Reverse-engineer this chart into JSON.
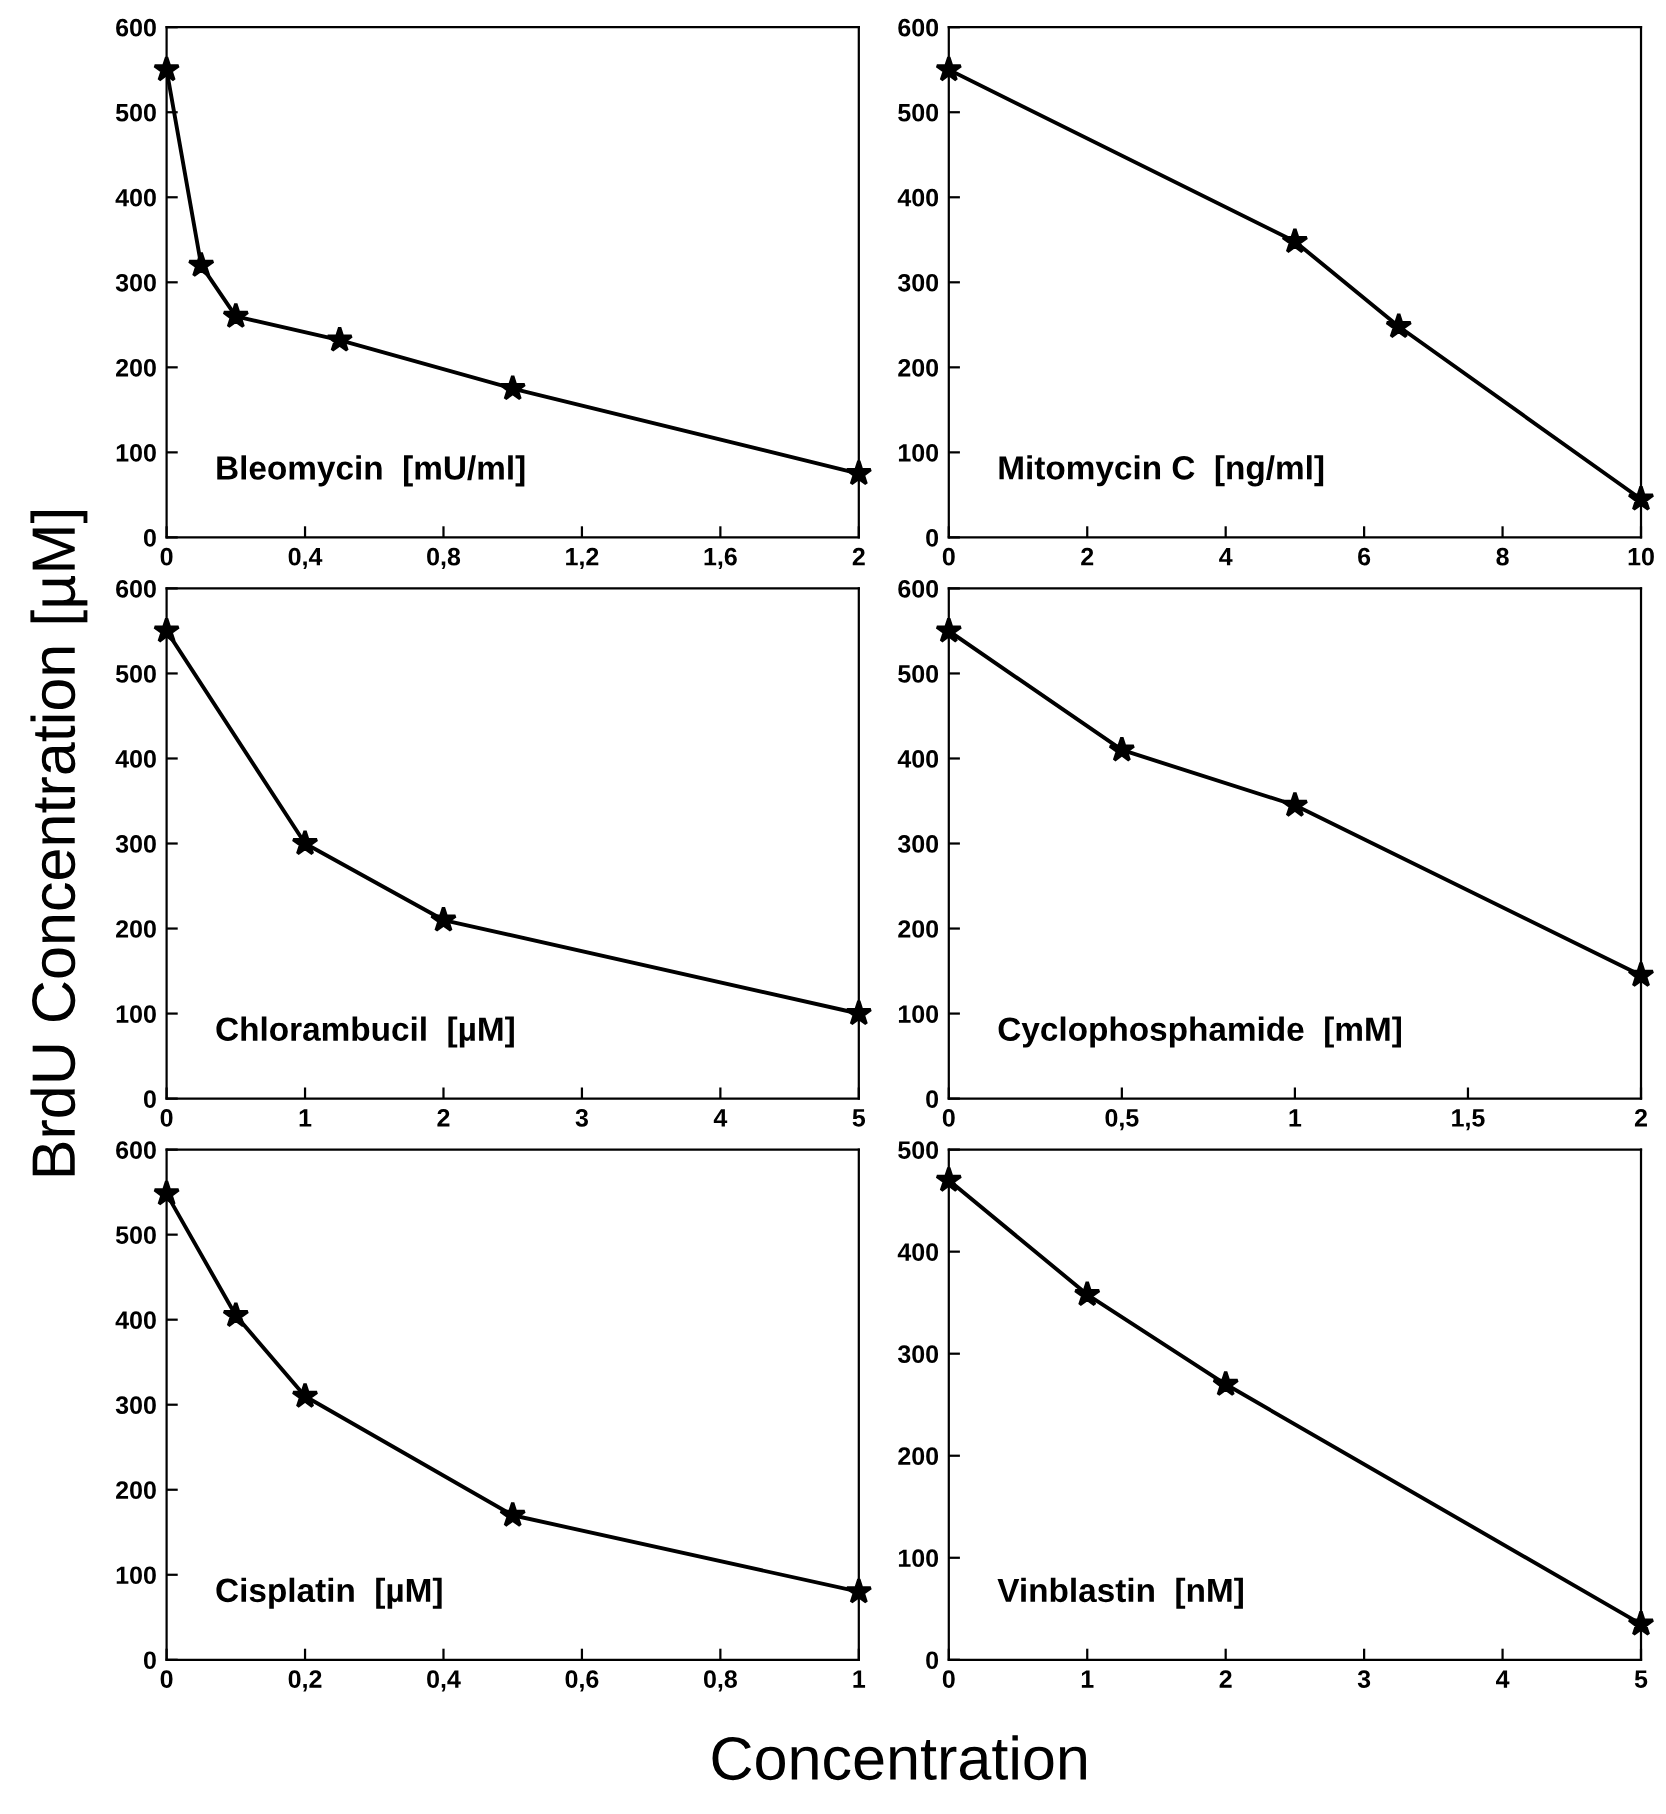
{
  "chart_data": [
    {
      "type": "line",
      "x": [
        0,
        0.1,
        0.2,
        0.5,
        1,
        2
      ],
      "values": [
        550,
        320,
        260,
        232,
        175,
        75
      ],
      "color": "#000000",
      "marker": "star",
      "line_style": "solid",
      "grid": false,
      "annotations": [
        "Bleomycin  [mU/ml]"
      ],
      "xlim": [
        0,
        2
      ],
      "xticks": [
        0,
        {
          "value": 0.4,
          "label": "0,4"
        },
        {
          "value": 0.8,
          "label": "0,8"
        },
        {
          "value": 1.2,
          "label": "1,2"
        },
        {
          "value": 1.6,
          "label": "1,6"
        },
        2
      ],
      "ylim": [
        0,
        600
      ],
      "yticks": [
        0,
        100,
        200,
        300,
        400,
        500,
        600
      ]
    },
    {
      "type": "line",
      "x": [
        0,
        5,
        6.5,
        10
      ],
      "values": [
        550,
        348,
        248,
        45
      ],
      "color": "#000000",
      "marker": "star",
      "line_style": "solid",
      "grid": false,
      "annotations": [
        "Mitomycin C  [ng/ml]"
      ],
      "xlim": [
        0,
        10
      ],
      "xticks": [
        0,
        2,
        4,
        6,
        8,
        10
      ],
      "ylim": [
        0,
        600
      ],
      "yticks": [
        0,
        100,
        200,
        300,
        400,
        500,
        600
      ]
    },
    {
      "type": "line",
      "x": [
        0,
        1,
        2,
        5
      ],
      "values": [
        550,
        300,
        210,
        100
      ],
      "color": "#000000",
      "marker": "star",
      "line_style": "solid",
      "grid": false,
      "ylabel": "BrdU Concentration [µM]",
      "annotations": [
        "Chlorambucil  [µM]"
      ],
      "xlim": [
        0,
        5
      ],
      "xticks": [
        0,
        1,
        2,
        3,
        4,
        5
      ],
      "ylim": [
        0,
        600
      ],
      "yticks": [
        0,
        100,
        200,
        300,
        400,
        500,
        600
      ]
    },
    {
      "type": "line",
      "x": [
        0,
        0.5,
        1,
        2
      ],
      "values": [
        550,
        410,
        345,
        145
      ],
      "color": "#000000",
      "marker": "star",
      "line_style": "solid",
      "grid": false,
      "annotations": [
        "Cyclophosphamide  [mM]"
      ],
      "xlim": [
        0,
        2
      ],
      "xticks": [
        0,
        {
          "value": 0.5,
          "label": "0,5"
        },
        1,
        {
          "value": 1.5,
          "label": "1,5"
        },
        2
      ],
      "ylim": [
        0,
        600
      ],
      "yticks": [
        0,
        100,
        200,
        300,
        400,
        500,
        600
      ]
    },
    {
      "type": "line",
      "x": [
        0,
        0.1,
        0.2,
        0.5,
        1
      ],
      "values": [
        548,
        405,
        310,
        170,
        80
      ],
      "color": "#000000",
      "marker": "star",
      "line_style": "solid",
      "grid": false,
      "xlabel": "Concentration",
      "annotations": [
        "Cisplatin  [µM]"
      ],
      "xlim": [
        0,
        1
      ],
      "xticks": [
        0,
        {
          "value": 0.2,
          "label": "0,2"
        },
        {
          "value": 0.4,
          "label": "0,4"
        },
        {
          "value": 0.6,
          "label": "0,6"
        },
        {
          "value": 0.8,
          "label": "0,8"
        },
        1
      ],
      "ylim": [
        0,
        600
      ],
      "yticks": [
        0,
        100,
        200,
        300,
        400,
        500,
        600
      ]
    },
    {
      "type": "line",
      "x": [
        0,
        1,
        2,
        5
      ],
      "values": [
        470,
        358,
        270,
        35
      ],
      "color": "#000000",
      "marker": "star",
      "line_style": "solid",
      "grid": false,
      "annotations": [
        "Vinblastin  [nM]"
      ],
      "xlim": [
        0,
        5
      ],
      "xticks": [
        0,
        1,
        2,
        3,
        4,
        5
      ],
      "ylim": [
        0,
        500
      ],
      "yticks": [
        0,
        100,
        200,
        300,
        400,
        500
      ]
    }
  ]
}
